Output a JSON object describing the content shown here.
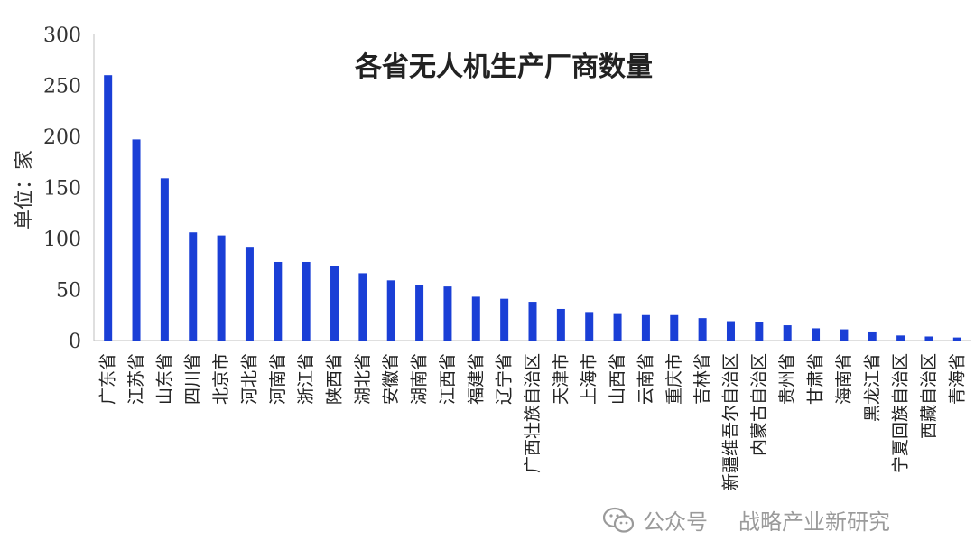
{
  "chart_data": {
    "type": "bar",
    "title": "各省无人机生产厂商数量",
    "ylabel": "单位：家",
    "xlabel": "",
    "ylim": [
      0,
      300
    ],
    "yticks": [
      0,
      50,
      100,
      150,
      200,
      250,
      300
    ],
    "grid": false,
    "legend": "none",
    "bar_color": "#1a3fd6",
    "categories": [
      "广东省",
      "江苏省",
      "山东省",
      "四川省",
      "北京市",
      "河北省",
      "河南省",
      "浙江省",
      "陕西省",
      "湖北省",
      "安徽省",
      "湖南省",
      "江西省",
      "福建省",
      "辽宁省",
      "广西壮族自治区",
      "天津市",
      "上海市",
      "山西省",
      "云南省",
      "重庆市",
      "吉林省",
      "新疆维吾尔自治区",
      "内蒙古自治区",
      "贵州省",
      "甘肃省",
      "海南省",
      "黑龙江省",
      "宁夏回族自治区",
      "西藏自治区",
      "青海省"
    ],
    "values": [
      260,
      197,
      159,
      106,
      103,
      91,
      77,
      77,
      73,
      66,
      59,
      54,
      53,
      43,
      41,
      38,
      31,
      28,
      26,
      25,
      25,
      22,
      19,
      18,
      15,
      12,
      11,
      8,
      5,
      4,
      3
    ]
  },
  "watermark": {
    "account_label": "公众号",
    "name": "战略产业新研究"
  }
}
